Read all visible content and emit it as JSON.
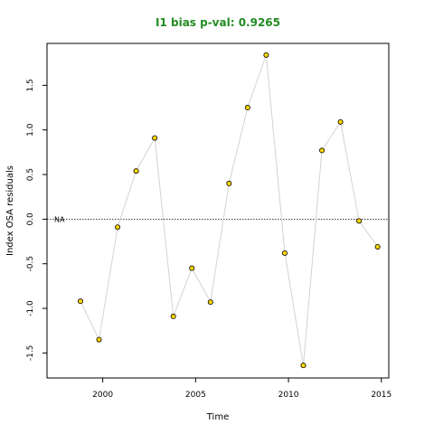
{
  "chart_data": {
    "type": "line",
    "title": "I1 bias p-val: 0.9265",
    "xlabel": "Time",
    "ylabel": "Index OSA residuals",
    "xlim": [
      1997,
      2015.4
    ],
    "ylim": [
      -1.78,
      1.97
    ],
    "xticks": [
      2000,
      2005,
      2010,
      2015
    ],
    "yticks": [
      -1.5,
      -1.0,
      -0.5,
      0.0,
      0.5,
      1.0,
      1.5
    ],
    "ytick_labels": [
      "-1.5",
      "-1.0",
      "-0.5",
      "0.0",
      "0.5",
      "1.0",
      "1.5"
    ],
    "reference_line": {
      "y": 0,
      "style": "dotted",
      "label": "NA"
    },
    "series": [
      {
        "x": [
          1998.8,
          1999.8,
          2000.8,
          2001.8,
          2002.8,
          2003.8,
          2004.8,
          2005.8,
          2006.8,
          2007.8,
          2008.8,
          2009.8,
          2010.8,
          2011.8,
          2012.8,
          2013.8,
          2014.8
        ],
        "y": [
          -0.92,
          -1.35,
          -0.09,
          0.54,
          0.91,
          -1.09,
          -0.55,
          -0.93,
          0.4,
          1.25,
          1.84,
          -0.38,
          -1.64,
          0.77,
          1.09,
          -0.02,
          -0.31
        ]
      }
    ],
    "colors": {
      "line": "#d3d3d3",
      "point_fill": "#ffd700",
      "point_stroke": "#000000",
      "title": "#228b22"
    },
    "grid": false
  }
}
